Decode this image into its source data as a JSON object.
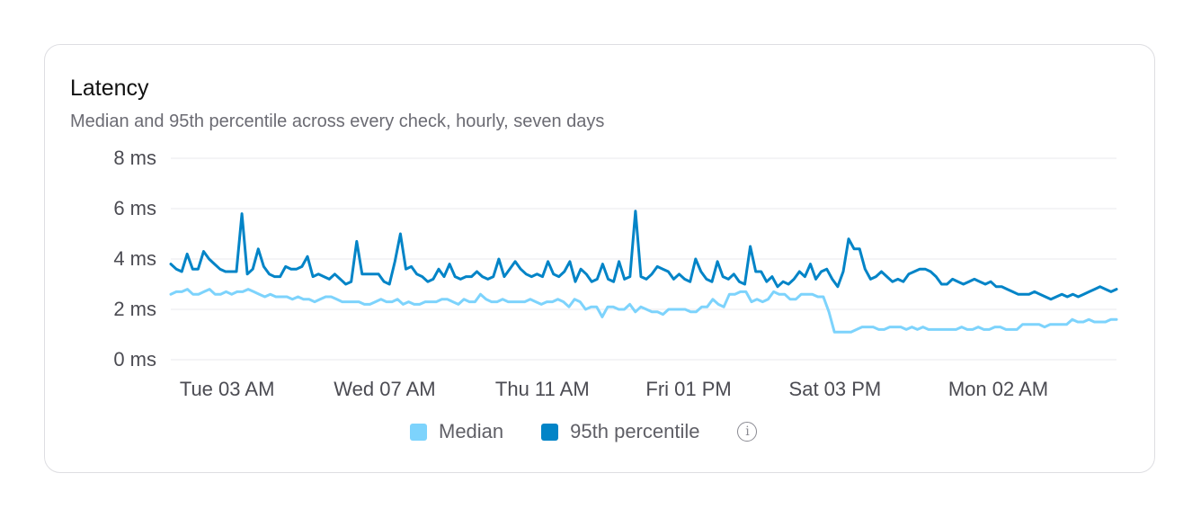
{
  "card": {
    "title": "Latency",
    "subtitle": "Median and 95th percentile across every check, hourly, seven days"
  },
  "colors": {
    "median": "#7dd3fc",
    "p95": "#0284c7",
    "grid": "#e8e8ec",
    "tick_text": "#4b4b52"
  },
  "legend": {
    "median_label": "Median",
    "p95_label": "95th percentile",
    "info_icon": "info-circle-icon"
  },
  "chart_data": {
    "type": "line",
    "title": "Latency",
    "subtitle": "Median and 95th percentile across every check, hourly, seven days",
    "y_unit": "ms",
    "ylim": [
      0,
      8
    ],
    "y_ticks": [
      0,
      2,
      4,
      6,
      8
    ],
    "y_tick_labels": [
      "0 ms",
      "2 ms",
      "4 ms",
      "6 ms",
      "8 ms"
    ],
    "x_range_hours": [
      0,
      168
    ],
    "x_ticks": [
      {
        "hour": 10,
        "label": "Tue 03 AM"
      },
      {
        "hour": 38,
        "label": "Wed 07 AM"
      },
      {
        "hour": 66,
        "label": "Thu 11 AM"
      },
      {
        "hour": 92,
        "label": "Fri 01 PM"
      },
      {
        "hour": 118,
        "label": "Sat 03 PM"
      },
      {
        "hour": 147,
        "label": "Mon 02 AM"
      }
    ],
    "grid": true,
    "legend_position": "bottom-center",
    "series": [
      {
        "name": "Median",
        "color": "#7dd3fc",
        "values": [
          2.6,
          2.7,
          2.7,
          2.8,
          2.6,
          2.6,
          2.7,
          2.8,
          2.6,
          2.6,
          2.7,
          2.6,
          2.7,
          2.7,
          2.8,
          2.7,
          2.6,
          2.5,
          2.6,
          2.5,
          2.5,
          2.5,
          2.4,
          2.5,
          2.4,
          2.4,
          2.3,
          2.4,
          2.5,
          2.5,
          2.4,
          2.3,
          2.3,
          2.3,
          2.3,
          2.2,
          2.2,
          2.3,
          2.4,
          2.3,
          2.3,
          2.4,
          2.2,
          2.3,
          2.2,
          2.2,
          2.3,
          2.3,
          2.3,
          2.4,
          2.4,
          2.3,
          2.2,
          2.4,
          2.3,
          2.3,
          2.6,
          2.4,
          2.3,
          2.3,
          2.4,
          2.3,
          2.3,
          2.3,
          2.3,
          2.4,
          2.3,
          2.2,
          2.3,
          2.3,
          2.4,
          2.3,
          2.1,
          2.4,
          2.3,
          2.0,
          2.1,
          2.1,
          1.7,
          2.1,
          2.1,
          2.0,
          2.0,
          2.2,
          1.9,
          2.1,
          2.0,
          1.9,
          1.9,
          1.8,
          2.0,
          2.0,
          2.0,
          2.0,
          1.9,
          1.9,
          2.1,
          2.1,
          2.4,
          2.2,
          2.1,
          2.6,
          2.6,
          2.7,
          2.7,
          2.3,
          2.4,
          2.3,
          2.4,
          2.7,
          2.6,
          2.6,
          2.4,
          2.4,
          2.6,
          2.6,
          2.6,
          2.5,
          2.5,
          1.9,
          1.1,
          1.1,
          1.1,
          1.1,
          1.2,
          1.3,
          1.3,
          1.3,
          1.2,
          1.2,
          1.3,
          1.3,
          1.3,
          1.2,
          1.3,
          1.2,
          1.3,
          1.2,
          1.2,
          1.2,
          1.2,
          1.2,
          1.2,
          1.3,
          1.2,
          1.2,
          1.3,
          1.2,
          1.2,
          1.3,
          1.3,
          1.2,
          1.2,
          1.2,
          1.4,
          1.4,
          1.4,
          1.4,
          1.3,
          1.4,
          1.4,
          1.4,
          1.4,
          1.6,
          1.5,
          1.5,
          1.6,
          1.5,
          1.5,
          1.5,
          1.6,
          1.6
        ]
      },
      {
        "name": "95th percentile",
        "color": "#0284c7",
        "values": [
          3.8,
          3.6,
          3.5,
          4.2,
          3.6,
          3.6,
          4.3,
          4.0,
          3.8,
          3.6,
          3.5,
          3.5,
          3.5,
          5.8,
          3.4,
          3.6,
          4.4,
          3.7,
          3.4,
          3.3,
          3.3,
          3.7,
          3.6,
          3.6,
          3.7,
          4.1,
          3.3,
          3.4,
          3.3,
          3.2,
          3.4,
          3.2,
          3.0,
          3.1,
          4.7,
          3.4,
          3.4,
          3.4,
          3.4,
          3.1,
          3.0,
          3.9,
          5.0,
          3.6,
          3.7,
          3.4,
          3.3,
          3.1,
          3.2,
          3.6,
          3.3,
          3.8,
          3.3,
          3.2,
          3.3,
          3.3,
          3.5,
          3.3,
          3.2,
          3.3,
          4.0,
          3.3,
          3.6,
          3.9,
          3.6,
          3.4,
          3.3,
          3.4,
          3.3,
          3.9,
          3.4,
          3.3,
          3.5,
          3.9,
          3.1,
          3.6,
          3.4,
          3.1,
          3.2,
          3.8,
          3.2,
          3.1,
          3.9,
          3.2,
          3.3,
          5.9,
          3.3,
          3.2,
          3.4,
          3.7,
          3.6,
          3.5,
          3.2,
          3.4,
          3.2,
          3.1,
          4.0,
          3.5,
          3.2,
          3.1,
          3.9,
          3.3,
          3.2,
          3.4,
          3.1,
          3.0,
          4.5,
          3.5,
          3.5,
          3.1,
          3.3,
          2.9,
          3.1,
          3.0,
          3.2,
          3.5,
          3.3,
          3.8,
          3.2,
          3.5,
          3.6,
          3.2,
          2.9,
          3.5,
          4.8,
          4.4,
          4.4,
          3.6,
          3.2,
          3.3,
          3.5,
          3.3,
          3.1,
          3.2,
          3.1,
          3.4,
          3.5,
          3.6,
          3.6,
          3.5,
          3.3,
          3.0,
          3.0,
          3.2,
          3.1,
          3.0,
          3.1,
          3.2,
          3.1,
          3.0,
          3.1,
          2.9,
          2.9,
          2.8,
          2.7,
          2.6,
          2.6,
          2.6,
          2.7,
          2.6,
          2.5,
          2.4,
          2.5,
          2.6,
          2.5,
          2.6,
          2.5,
          2.6,
          2.7,
          2.8,
          2.9,
          2.8,
          2.7,
          2.8
        ]
      }
    ]
  }
}
